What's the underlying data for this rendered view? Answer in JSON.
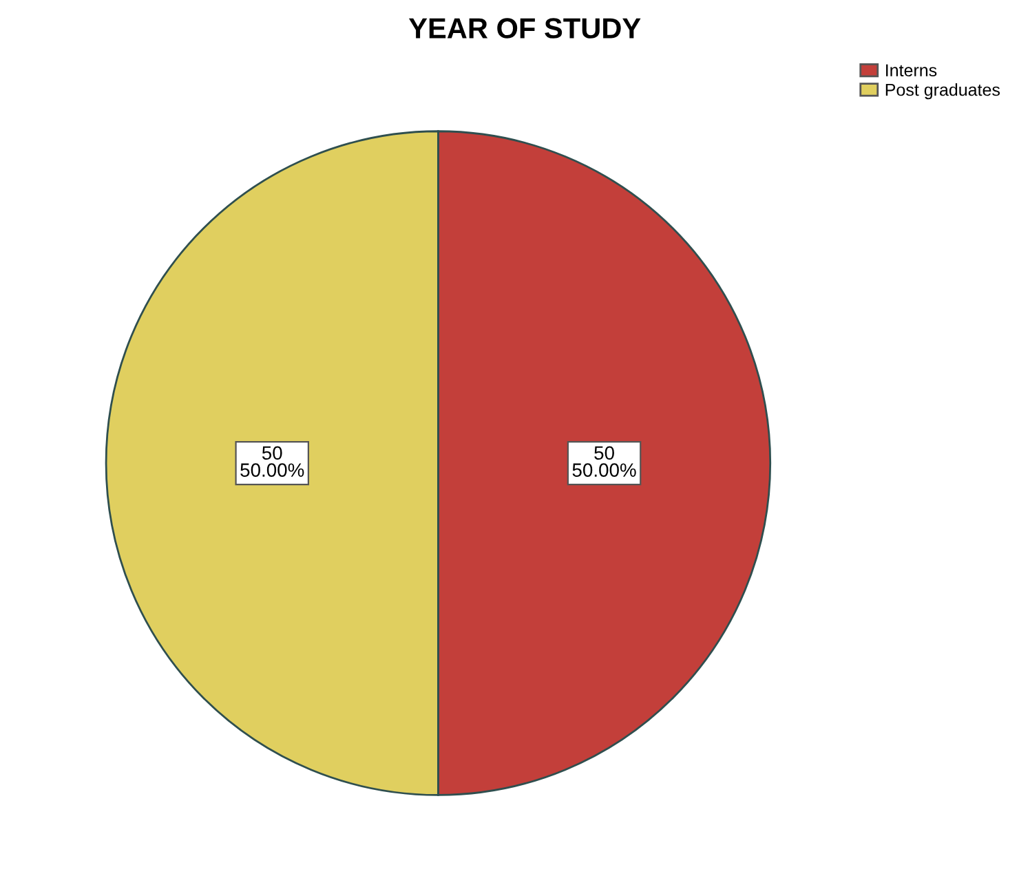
{
  "chart_data": {
    "type": "pie",
    "title": "YEAR OF STUDY",
    "categories": [
      "Interns",
      "Post graduates"
    ],
    "values": [
      50,
      50
    ],
    "colors": [
      "#c33f3a",
      "#e0cf5f"
    ],
    "value_labels": [
      "50\n50.00%",
      "50\n50.00%"
    ],
    "legend": "top right"
  }
}
